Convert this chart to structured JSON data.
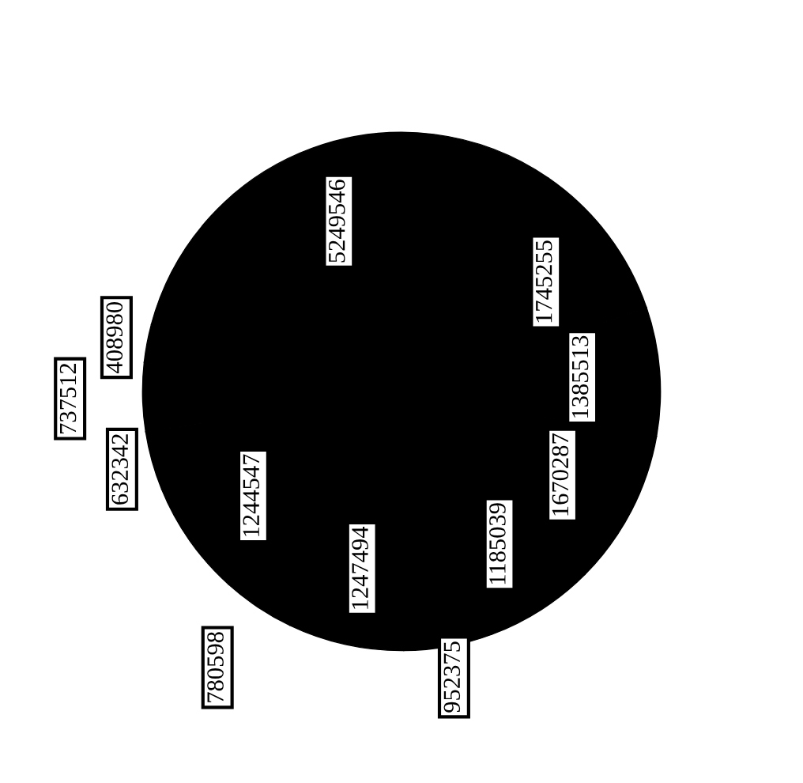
{
  "chart_data": {
    "type": "pie",
    "categories": [
      null,
      null,
      null,
      null,
      null,
      null,
      null,
      null,
      null,
      null,
      null,
      null
    ],
    "values": [
      5249546,
      1745255,
      1385513,
      1670287,
      1185039,
      952375,
      1247494,
      780598,
      1244547,
      632342,
      737512,
      408980
    ],
    "colors": [
      "#000000",
      "#000000",
      "#000000",
      "#000000",
      "#000000",
      "#000000",
      "#000000",
      "#000000",
      "#000000",
      "#000000",
      "#000000",
      "#000000"
    ],
    "data_labels": true
  }
}
